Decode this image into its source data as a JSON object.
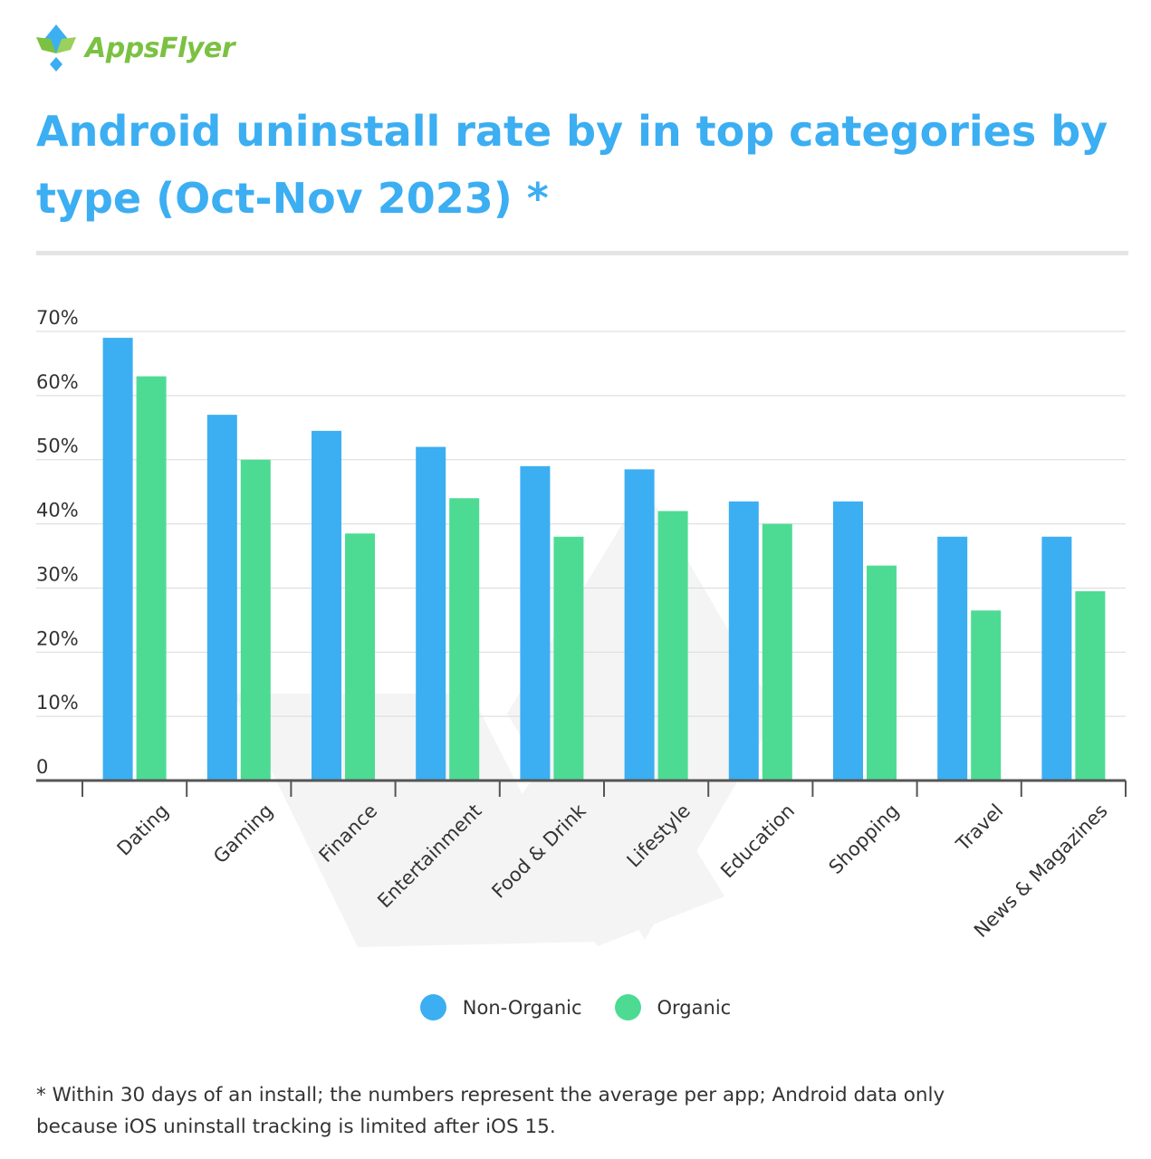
{
  "brand": {
    "name": "AppsFlyer",
    "logo_icon": "appsflyer-diamond-logo-icon",
    "colors": {
      "logo_green": "#7bc142",
      "logo_blue": "#3caef2"
    }
  },
  "header": {
    "title": "Android uninstall rate by in top categories by type (Oct-Nov 2023) *"
  },
  "colors": {
    "title": "#3caef2",
    "non_organic": "#3caef2",
    "organic": "#4ddb94",
    "gridline": "#d9d9d9",
    "axis": "#555555",
    "text": "#333333",
    "watermark": "#f4f4f4"
  },
  "chart_data": {
    "type": "bar",
    "title": "Android uninstall rate by in top categories by type (Oct-Nov 2023) *",
    "xlabel": "",
    "ylabel": "",
    "ylim": [
      0,
      70
    ],
    "yticks": [
      0,
      10,
      20,
      30,
      40,
      50,
      60,
      70
    ],
    "ytick_labels": [
      "0",
      "10%",
      "20%",
      "30%",
      "40%",
      "50%",
      "60%",
      "70%"
    ],
    "grid": true,
    "legend_position": "bottom-center",
    "categories": [
      "Dating",
      "Gaming",
      "Finance",
      "Entertainment",
      "Food & Drink",
      "Lifestyle",
      "Education",
      "Shopping",
      "Travel",
      "News & Magazines"
    ],
    "series": [
      {
        "name": "Non-Organic",
        "values": [
          69,
          57,
          54.5,
          52,
          49,
          48.5,
          43.5,
          43.5,
          38,
          38
        ]
      },
      {
        "name": "Organic",
        "values": [
          63,
          50,
          38.5,
          44,
          38,
          42,
          40,
          33.5,
          26.5,
          29.5
        ]
      }
    ]
  },
  "legend": {
    "items": [
      {
        "label": "Non-Organic",
        "color": "#3caef2"
      },
      {
        "label": "Organic",
        "color": "#4ddb94"
      }
    ]
  },
  "footnote": {
    "line1": "* Within 30 days of an install; the numbers represent the average per app; Android data only",
    "line2": "because iOS uninstall tracking is limited after iOS 15."
  }
}
